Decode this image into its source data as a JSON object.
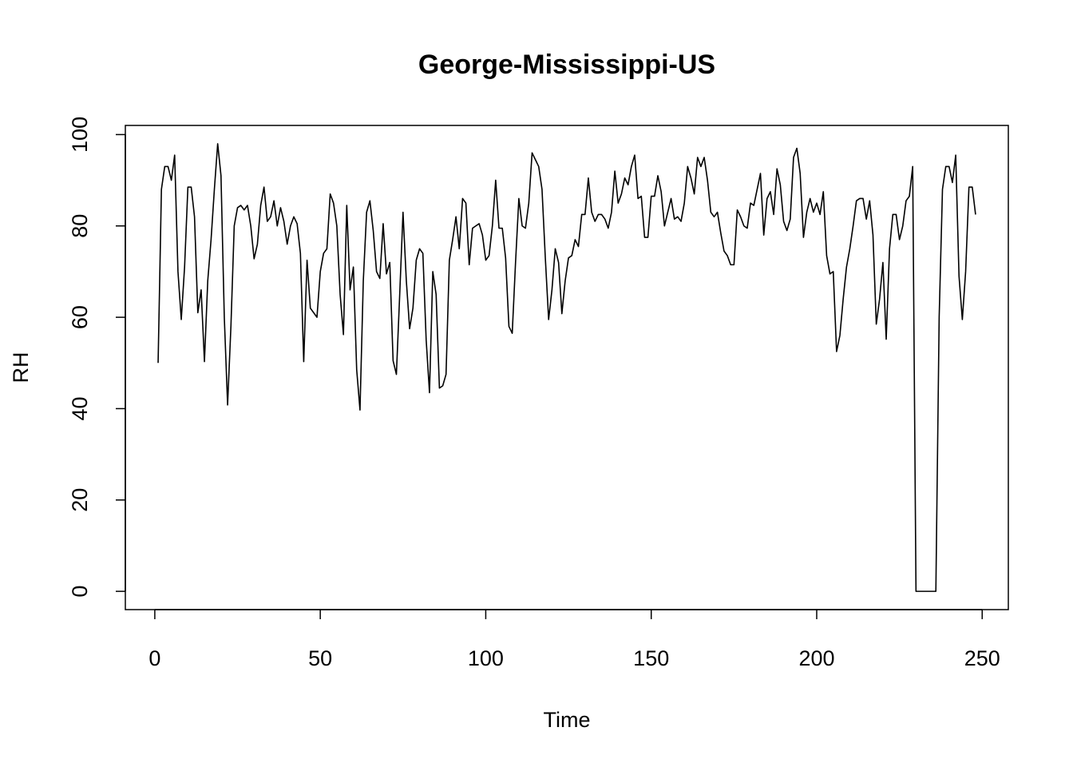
{
  "chart_data": {
    "type": "line",
    "title": "George-Mississippi-US",
    "x_label": "Time",
    "y_label": "RH",
    "x": [
      1,
      2,
      3,
      4,
      5,
      6,
      7,
      8,
      9,
      10,
      11,
      12,
      13,
      14,
      15,
      16,
      17,
      18,
      19,
      20,
      21,
      22,
      23,
      24,
      25,
      26,
      27,
      28,
      29,
      30,
      31,
      32,
      33,
      34,
      35,
      36,
      37,
      38,
      39,
      40,
      41,
      42,
      43,
      44,
      45,
      46,
      47,
      48,
      49,
      50,
      51,
      52,
      53,
      54,
      55,
      56,
      57,
      58,
      59,
      60,
      61,
      62,
      63,
      64,
      65,
      66,
      67,
      68,
      69,
      70,
      71,
      72,
      73,
      74,
      75,
      76,
      77,
      78,
      79,
      80,
      81,
      82,
      83,
      84,
      85,
      86,
      87,
      88,
      89,
      90,
      91,
      92,
      93,
      94,
      95,
      96,
      97,
      98,
      99,
      100,
      101,
      102,
      103,
      104,
      105,
      106,
      107,
      108,
      109,
      110,
      111,
      112,
      113,
      114,
      115,
      116,
      117,
      118,
      119,
      120,
      121,
      122,
      123,
      124,
      125,
      126,
      127,
      128,
      129,
      130,
      131,
      132,
      133,
      134,
      135,
      136,
      137,
      138,
      139,
      140,
      141,
      142,
      143,
      144,
      145,
      146,
      147,
      148,
      149,
      150,
      151,
      152,
      153,
      154,
      155,
      156,
      157,
      158,
      159,
      160,
      161,
      162,
      163,
      164,
      165,
      166,
      167,
      168,
      169,
      170,
      171,
      172,
      173,
      174,
      175,
      176,
      177,
      178,
      179,
      180,
      181,
      182,
      183,
      184,
      185,
      186,
      187,
      188,
      189,
      190,
      191,
      192,
      193,
      194,
      195,
      196,
      197,
      198,
      199,
      200,
      201,
      202,
      203,
      204,
      205,
      206,
      207,
      208,
      209,
      210,
      211,
      212,
      213,
      214,
      215,
      216,
      217,
      218,
      219,
      220,
      221,
      222,
      223,
      224,
      225,
      226,
      227,
      228,
      229,
      230,
      231,
      232,
      233,
      234,
      235,
      236,
      237,
      238,
      239,
      240,
      241,
      242,
      243,
      244,
      245,
      246,
      247,
      248
    ],
    "values": [
      50,
      88,
      93,
      93,
      90,
      95.5,
      70,
      59.5,
      71,
      88.5,
      88.5,
      82,
      61,
      66,
      50.3,
      68,
      77,
      88,
      98,
      91,
      60,
      40.8,
      58,
      80,
      84,
      84.5,
      83.5,
      84.5,
      80,
      72.8,
      76,
      84.5,
      88.5,
      81,
      82,
      85.5,
      80,
      84,
      81,
      76,
      80,
      82,
      80.5,
      74,
      50.3,
      72.5,
      62,
      61,
      60,
      70,
      74,
      75,
      87,
      85,
      80,
      65,
      56.2,
      84.5,
      66,
      71,
      48.5,
      39.7,
      68,
      83,
      85.5,
      79,
      70,
      68.5,
      80.5,
      69.5,
      72,
      50.5,
      47.5,
      65,
      83,
      68,
      57.5,
      62,
      72.5,
      75,
      74,
      55,
      43.5,
      70,
      65,
      44.5,
      45,
      47.5,
      72.5,
      77,
      82,
      75,
      86,
      85,
      71.5,
      79.5,
      80,
      80.5,
      78,
      72.5,
      73.5,
      80,
      90,
      79.5,
      79.5,
      73,
      58,
      56.5,
      72,
      86,
      80,
      79.5,
      85,
      96,
      94.5,
      93,
      88,
      73,
      59.5,
      66,
      75,
      72,
      60.8,
      68,
      73,
      73.5,
      77,
      75.5,
      82.5,
      82.5,
      90.5,
      83,
      81,
      82.5,
      82.5,
      81.5,
      79.5,
      83,
      92,
      85,
      87,
      90.5,
      89,
      93,
      95.5,
      86,
      86.5,
      77.5,
      77.5,
      86.5,
      86.5,
      91,
      87.5,
      80,
      83,
      86,
      81.5,
      82,
      81,
      85,
      93,
      90.5,
      87,
      95,
      93,
      95,
      90,
      83,
      82,
      83,
      78.5,
      74.5,
      73.5,
      71.5,
      71.5,
      83.5,
      82,
      80,
      79.5,
      85,
      84.5,
      88,
      91.5,
      78,
      86,
      87.5,
      82.5,
      92.5,
      89,
      81,
      79,
      81.5,
      95,
      97,
      91.5,
      77.5,
      83,
      86,
      83,
      85,
      82.5,
      87.5,
      73.5,
      69.5,
      70,
      52.5,
      56,
      64,
      71,
      75,
      80,
      85.5,
      86,
      86,
      81.5,
      85.5,
      78,
      58.5,
      64,
      72,
      55.2,
      75,
      82.5,
      82.5,
      77,
      80,
      85.5,
      86.5,
      93,
      0,
      0,
      0,
      0,
      0,
      0,
      0,
      60,
      88,
      93,
      93,
      89.5,
      95.5,
      69,
      59.5,
      70,
      88.5,
      88.5,
      82.5
    ],
    "color": "#000000",
    "xlim": [
      -8.9,
      257.9
    ],
    "ylim": [
      -4,
      102
    ],
    "xticks": [
      0,
      50,
      100,
      150,
      200,
      250
    ],
    "yticks": [
      0,
      20,
      40,
      60,
      80,
      100
    ]
  }
}
